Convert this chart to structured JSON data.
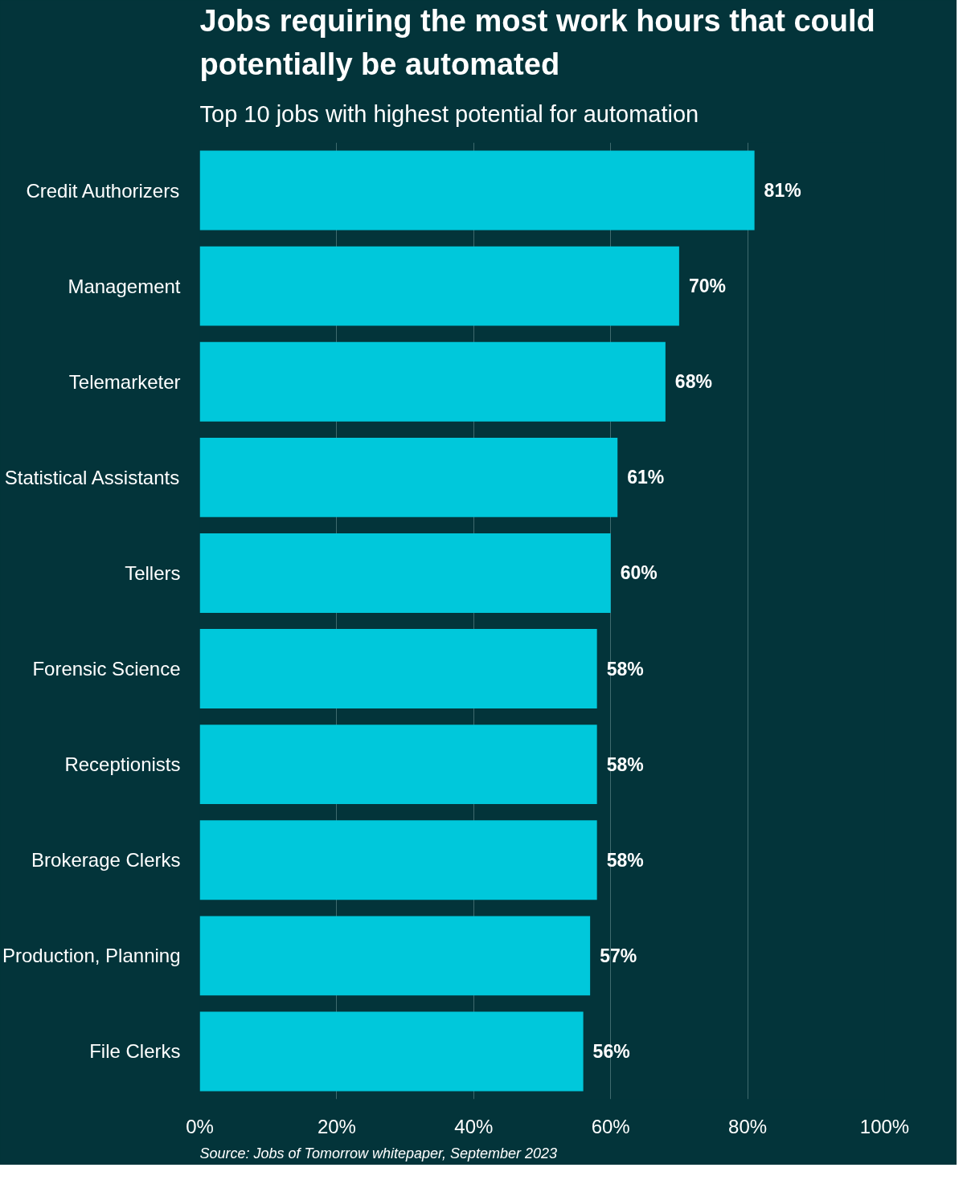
{
  "chart_data": {
    "type": "bar",
    "orientation": "horizontal",
    "title": "Jobs requiring the most work hours that could potentially be automated",
    "subtitle": "Top 10 jobs with highest potential for automation",
    "categories": [
      "Credit Authorizers",
      "Management",
      "Telemarketer",
      "Statistical Assistants",
      "Tellers",
      "Forensic Science",
      "Receptionists",
      "Brokerage Clerks",
      "Production, Planning",
      "File Clerks"
    ],
    "values": [
      81,
      70,
      68,
      61,
      60,
      58,
      58,
      58,
      57,
      56
    ],
    "value_labels": [
      "81%",
      "70%",
      "68%",
      "61%",
      "60%",
      "58%",
      "58%",
      "58%",
      "57%",
      "56%"
    ],
    "color": "#00c8db",
    "xlim": [
      0,
      100
    ],
    "xticks": [
      {
        "value": 0,
        "label": "0%"
      },
      {
        "value": 20,
        "label": "20%"
      },
      {
        "value": 40,
        "label": "40%"
      },
      {
        "value": 60,
        "label": "60%"
      },
      {
        "value": 80,
        "label": "80%"
      },
      {
        "value": 100,
        "label": "100%"
      }
    ],
    "grid": "x",
    "annotations": [
      "Source: Jobs of Tomorrow whitepaper, September 2023"
    ]
  }
}
